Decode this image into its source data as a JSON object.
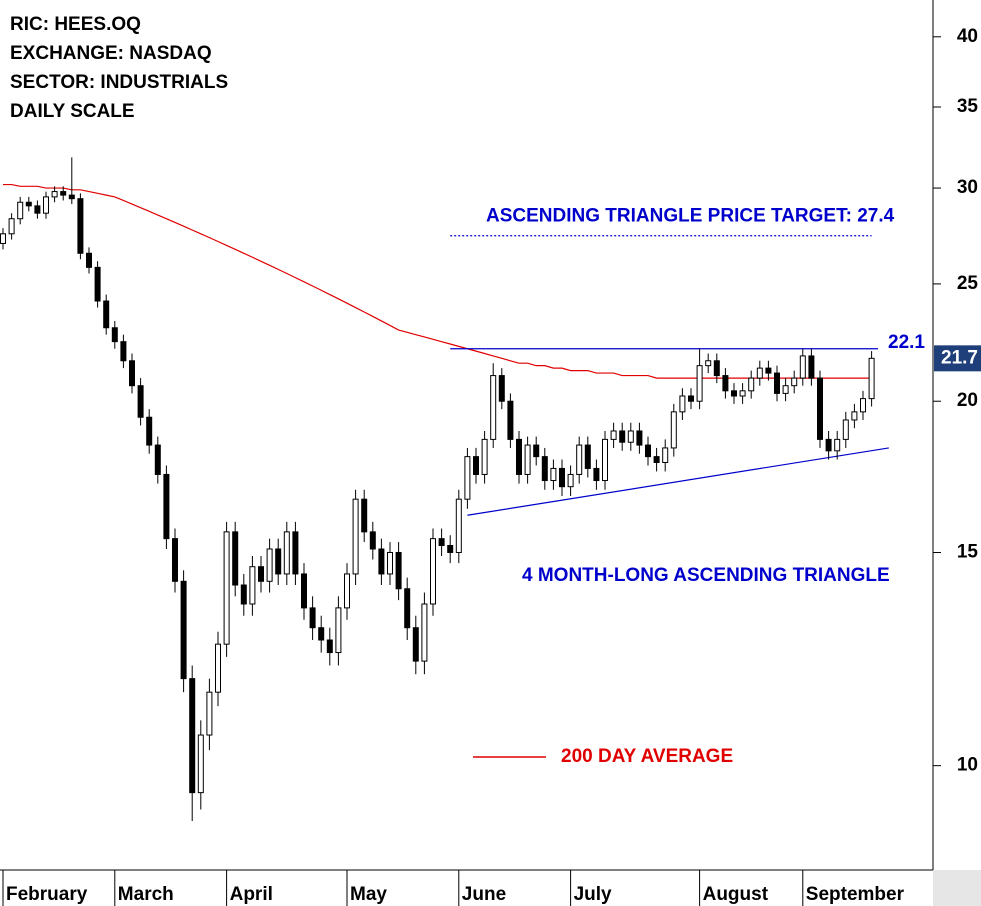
{
  "chart_data": {
    "type": "candlestick",
    "info": [
      "RIC: HEES.OQ",
      "EXCHANGE: NASDAQ",
      "SECTOR: INDUSTRIALS",
      "DAILY SCALE"
    ],
    "log_scale": true,
    "ylim": [
      8.2,
      42.9
    ],
    "yticks": [
      10,
      15,
      20,
      25,
      30,
      35,
      40
    ],
    "xticks": [
      {
        "value": 0,
        "label": "February"
      },
      {
        "value": 13,
        "label": "March"
      },
      {
        "value": 26,
        "label": "April"
      },
      {
        "value": 40,
        "label": "May"
      },
      {
        "value": 53,
        "label": "June"
      },
      {
        "value": 66,
        "label": "July"
      },
      {
        "value": 81,
        "label": "August"
      },
      {
        "value": 93,
        "label": "September"
      }
    ],
    "up_color": "#ffffff",
    "down_color": "#000000",
    "open": [
      27.0,
      27.5,
      28.3,
      29.2,
      29.0,
      28.6,
      29.5,
      29.8,
      29.6,
      29.4,
      26.5,
      25.8,
      24.2,
      23.0,
      22.4,
      21.6,
      20.6,
      19.4,
      18.4,
      17.4,
      15.4,
      14.2,
      11.8,
      9.5,
      10.6,
      11.5,
      12.6,
      15.6,
      14.1,
      13.6,
      14.6,
      14.2,
      15.1,
      14.4,
      15.6,
      14.4,
      13.5,
      13.0,
      12.7,
      12.4,
      13.5,
      14.4,
      16.6,
      15.6,
      15.1,
      14.4,
      15.0,
      14.0,
      13.0,
      12.2,
      13.6,
      15.4,
      15.2,
      15.0,
      16.6,
      18.0,
      17.4,
      18.6,
      21.0,
      20.0,
      18.6,
      17.4,
      18.4,
      18.0,
      17.2,
      17.6,
      17.0,
      17.4,
      18.4,
      17.6,
      17.2,
      18.6,
      18.9,
      18.5,
      18.9,
      18.4,
      18.0,
      17.8,
      18.3,
      19.6,
      20.2,
      20.0,
      21.4,
      21.6,
      21.0,
      20.4,
      20.2,
      20.4,
      20.9,
      21.3,
      21.1,
      20.3,
      20.6,
      20.9,
      21.8,
      20.9,
      18.6,
      18.2,
      18.6,
      19.3,
      19.6,
      20.1
    ],
    "high": [
      27.8,
      28.6,
      29.5,
      29.5,
      29.3,
      29.8,
      30.1,
      30.1,
      31.8,
      29.7,
      26.8,
      26.1,
      24.5,
      23.3,
      22.7,
      21.9,
      20.9,
      19.7,
      18.7,
      17.7,
      15.7,
      14.5,
      12.1,
      10.9,
      11.8,
      12.9,
      15.9,
      15.9,
      14.4,
      14.9,
      14.9,
      15.4,
      15.4,
      15.9,
      15.9,
      14.7,
      13.8,
      13.3,
      13.0,
      13.8,
      14.7,
      16.9,
      16.9,
      15.9,
      15.4,
      15.3,
      15.3,
      14.3,
      13.3,
      13.9,
      15.7,
      15.7,
      15.5,
      16.9,
      18.3,
      18.3,
      18.9,
      21.5,
      21.3,
      20.3,
      18.9,
      18.7,
      18.7,
      18.3,
      17.9,
      17.9,
      17.7,
      18.7,
      18.7,
      17.9,
      18.9,
      19.2,
      19.2,
      19.2,
      19.2,
      18.7,
      18.3,
      18.6,
      19.9,
      20.5,
      20.5,
      22.1,
      21.9,
      21.9,
      21.3,
      20.7,
      20.7,
      21.2,
      21.6,
      21.6,
      21.4,
      20.9,
      21.2,
      22.1,
      22.1,
      21.2,
      18.9,
      18.9,
      19.6,
      19.9,
      20.4,
      22.0
    ],
    "low": [
      26.7,
      27.2,
      28.0,
      28.7,
      28.3,
      28.3,
      29.2,
      29.3,
      29.1,
      26.2,
      25.5,
      23.9,
      22.7,
      22.1,
      21.3,
      20.3,
      19.1,
      18.1,
      17.1,
      15.1,
      13.9,
      11.5,
      9.0,
      9.2,
      10.3,
      11.2,
      12.3,
      13.8,
      13.3,
      13.3,
      13.9,
      13.9,
      14.1,
      14.1,
      14.1,
      13.2,
      12.7,
      12.4,
      12.1,
      12.1,
      13.2,
      14.1,
      15.3,
      14.8,
      14.1,
      14.1,
      13.7,
      12.7,
      11.9,
      11.9,
      13.3,
      14.9,
      14.7,
      14.7,
      16.3,
      17.1,
      17.1,
      18.3,
      19.7,
      18.3,
      17.1,
      17.1,
      17.7,
      16.9,
      16.9,
      16.7,
      16.7,
      17.1,
      17.3,
      16.9,
      16.9,
      18.3,
      18.2,
      18.2,
      18.1,
      17.7,
      17.5,
      17.5,
      18.0,
      19.3,
      19.7,
      19.7,
      21.1,
      20.7,
      20.1,
      19.9,
      19.9,
      20.1,
      20.6,
      20.8,
      20.0,
      20.0,
      20.3,
      20.6,
      20.6,
      18.3,
      17.9,
      17.9,
      18.3,
      19.0,
      19.3,
      19.8
    ],
    "close": [
      27.5,
      28.3,
      29.2,
      29.0,
      28.6,
      29.5,
      29.8,
      29.6,
      29.4,
      26.5,
      25.8,
      24.2,
      23.0,
      22.4,
      21.6,
      20.6,
      19.4,
      18.4,
      17.4,
      15.4,
      14.2,
      11.8,
      9.5,
      10.6,
      11.5,
      12.6,
      15.6,
      14.1,
      13.6,
      14.6,
      14.2,
      15.1,
      14.4,
      15.6,
      14.4,
      13.5,
      13.0,
      12.7,
      12.4,
      13.5,
      14.4,
      16.6,
      15.6,
      15.1,
      14.4,
      15.0,
      14.0,
      13.0,
      12.2,
      13.6,
      15.4,
      15.2,
      15.0,
      16.6,
      18.0,
      17.4,
      18.6,
      21.0,
      20.0,
      18.6,
      17.4,
      18.4,
      18.0,
      17.2,
      17.6,
      17.0,
      17.4,
      18.4,
      17.6,
      17.2,
      18.6,
      18.9,
      18.5,
      18.9,
      18.4,
      18.0,
      17.8,
      18.3,
      19.6,
      20.2,
      20.0,
      21.4,
      21.6,
      21.0,
      20.4,
      20.2,
      20.4,
      20.9,
      21.3,
      21.1,
      20.3,
      20.6,
      20.9,
      21.8,
      20.9,
      18.6,
      18.2,
      18.6,
      19.3,
      19.6,
      20.1,
      21.7
    ],
    "moving_average": {
      "name": "200 DAY AVERAGE",
      "color": "#e00000",
      "values": [
        30.2,
        30.2,
        30.1,
        30.1,
        30.1,
        30.0,
        30.0,
        30.0,
        29.9,
        29.9,
        29.8,
        29.7,
        29.6,
        29.5,
        29.3,
        29.1,
        28.9,
        28.7,
        28.5,
        28.3,
        28.1,
        27.9,
        27.7,
        27.5,
        27.3,
        27.1,
        26.9,
        26.7,
        26.5,
        26.3,
        26.1,
        25.9,
        25.7,
        25.5,
        25.3,
        25.1,
        24.9,
        24.7,
        24.5,
        24.3,
        24.1,
        23.9,
        23.7,
        23.5,
        23.3,
        23.1,
        22.9,
        22.8,
        22.7,
        22.6,
        22.5,
        22.4,
        22.3,
        22.2,
        22.1,
        22.0,
        21.9,
        21.8,
        21.7,
        21.6,
        21.5,
        21.5,
        21.4,
        21.4,
        21.3,
        21.3,
        21.2,
        21.2,
        21.2,
        21.1,
        21.1,
        21.1,
        21.0,
        21.0,
        21.0,
        21.0,
        20.9,
        20.9,
        20.9,
        20.9,
        20.9,
        20.9,
        20.9,
        20.9,
        20.9,
        20.9,
        20.9,
        20.9,
        20.9,
        20.9,
        20.9,
        20.9,
        20.9,
        20.9,
        20.9,
        20.9,
        20.9,
        20.9,
        20.9,
        20.9,
        20.9,
        20.9
      ]
    },
    "resistance": {
      "value": 22.1,
      "start": 52,
      "color": "#0000cc"
    },
    "target": {
      "value": 27.4,
      "label": "ASCENDING TRIANGLE PRICE TARGET: 27.4",
      "start": 52,
      "end": 101,
      "color": "#0000cc"
    },
    "support": {
      "start": [
        54,
        16.1
      ],
      "end": [
        103,
        18.3
      ],
      "color": "#0000cc"
    },
    "pattern_label": "4 MONTH-LONG ASCENDING TRIANGLE"
  }
}
